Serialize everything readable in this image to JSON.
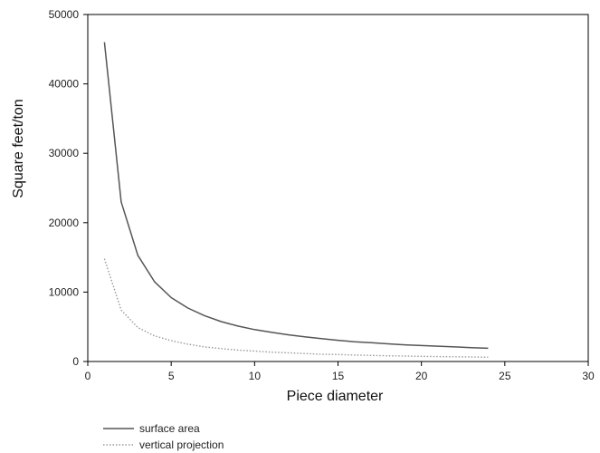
{
  "chart_data": {
    "type": "line",
    "title": "",
    "xlabel": "Piece diameter",
    "ylabel": "Square feet/ton",
    "xlim": [
      0,
      30
    ],
    "ylim": [
      0,
      50000
    ],
    "xticks": [
      0,
      5,
      10,
      15,
      20,
      25,
      30
    ],
    "yticks": [
      0,
      10000,
      20000,
      30000,
      40000,
      50000
    ],
    "grid": false,
    "legend_position": "bottom-left",
    "series": [
      {
        "name": "surface area",
        "color": "#555555",
        "style": "solid",
        "x": [
          1,
          2,
          3,
          4,
          5,
          6,
          7,
          8,
          9,
          10,
          11,
          12,
          13,
          14,
          15,
          16,
          17,
          18,
          19,
          20,
          21,
          22,
          23,
          24
        ],
        "y": [
          46000,
          23000,
          15300,
          11500,
          9200,
          7700,
          6600,
          5750,
          5100,
          4600,
          4200,
          3850,
          3550,
          3300,
          3050,
          2850,
          2700,
          2550,
          2400,
          2300,
          2200,
          2100,
          2000,
          1900
        ]
      },
      {
        "name": "vertical projection",
        "color": "#999999",
        "style": "dotted",
        "x": [
          1,
          2,
          3,
          4,
          5,
          6,
          7,
          8,
          9,
          10,
          11,
          12,
          13,
          14,
          15,
          16,
          17,
          18,
          19,
          20,
          21,
          22,
          23,
          24
        ],
        "y": [
          14800,
          7400,
          4900,
          3700,
          3000,
          2500,
          2100,
          1850,
          1650,
          1500,
          1350,
          1250,
          1150,
          1050,
          1000,
          930,
          870,
          820,
          780,
          740,
          710,
          680,
          650,
          620
        ]
      }
    ]
  }
}
